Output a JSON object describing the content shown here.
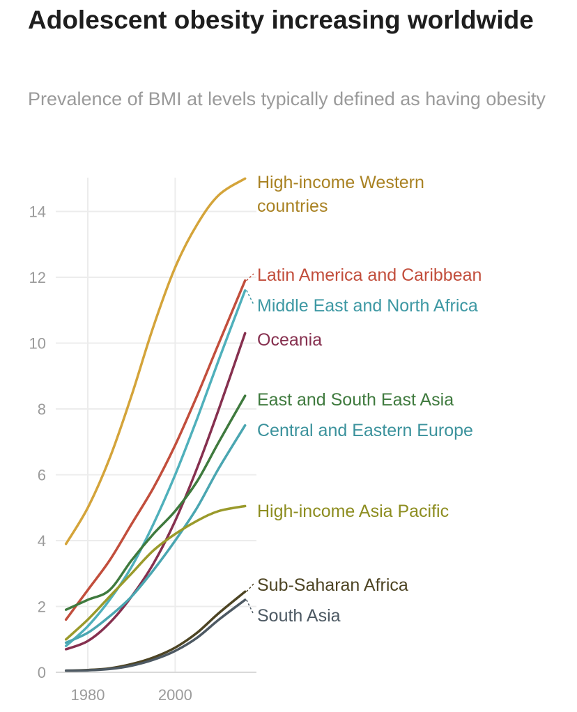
{
  "chart_data": {
    "type": "line",
    "title": "Adolescent obesity increasing worldwide",
    "subtitle": "Prevalence of BMI at levels typically defined as having obesity",
    "xlabel": "",
    "ylabel": "",
    "x": [
      1975,
      1980,
      1985,
      1990,
      1995,
      2000,
      2005,
      2010,
      2016
    ],
    "xticks": [
      1980,
      2000
    ],
    "yticks": [
      0,
      2,
      4,
      6,
      8,
      10,
      12,
      14
    ],
    "xlim": [
      1972,
      2019
    ],
    "ylim": [
      0,
      15
    ],
    "grid": true,
    "legend": "direct labels at line ends",
    "series": [
      {
        "name": "High-income Western countries",
        "color": "#d4a43a",
        "label_color": "#a98223",
        "values": [
          3.9,
          5.0,
          6.5,
          8.4,
          10.5,
          12.3,
          13.6,
          14.5,
          15.0
        ]
      },
      {
        "name": "Latin America and Caribbean",
        "color": "#c24e3c",
        "label_color": "#c24e3c",
        "values": [
          1.6,
          2.5,
          3.4,
          4.5,
          5.6,
          6.9,
          8.4,
          10.0,
          11.9
        ]
      },
      {
        "name": "Middle East and North Africa",
        "color": "#4fb0bb",
        "label_color": "#3d98a3",
        "values": [
          0.8,
          1.4,
          2.2,
          3.2,
          4.5,
          6.0,
          7.7,
          9.5,
          11.6
        ]
      },
      {
        "name": "Oceania",
        "color": "#86304f",
        "label_color": "#86304f",
        "values": [
          0.7,
          0.95,
          1.5,
          2.3,
          3.3,
          4.6,
          6.2,
          8.0,
          10.3
        ]
      },
      {
        "name": "East and South East Asia",
        "color": "#3f7a3e",
        "label_color": "#3f7a3e",
        "values": [
          1.9,
          2.2,
          2.5,
          3.4,
          4.2,
          4.9,
          5.8,
          7.0,
          8.4
        ]
      },
      {
        "name": "Central and Eastern Europe",
        "color": "#4aa6b1",
        "label_color": "#3b929c",
        "values": [
          0.9,
          1.2,
          1.7,
          2.3,
          3.1,
          4.0,
          5.0,
          6.2,
          7.5
        ]
      },
      {
        "name": "High-income Asia Pacific",
        "color": "#9a9a2b",
        "label_color": "#8d8d20",
        "values": [
          1.0,
          1.6,
          2.3,
          3.0,
          3.7,
          4.2,
          4.6,
          4.9,
          5.05
        ]
      },
      {
        "name": "Sub-Saharan Africa",
        "color": "#4d4423",
        "label_color": "#4d4423",
        "values": [
          0.05,
          0.07,
          0.12,
          0.25,
          0.45,
          0.75,
          1.2,
          1.8,
          2.45
        ]
      },
      {
        "name": "South Asia",
        "color": "#4d5963",
        "label_color": "#4d5963",
        "values": [
          0.05,
          0.06,
          0.1,
          0.2,
          0.38,
          0.65,
          1.05,
          1.6,
          2.2
        ]
      }
    ]
  }
}
